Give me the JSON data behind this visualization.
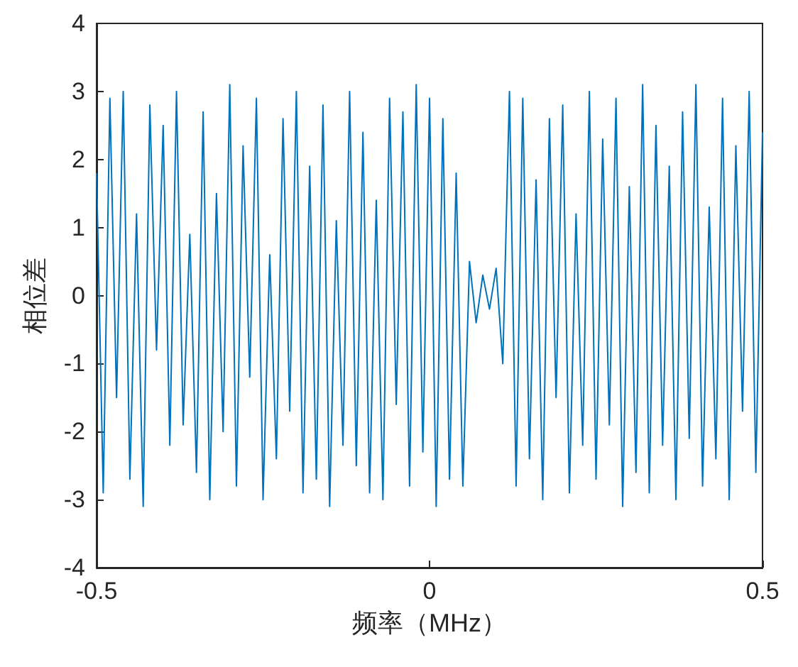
{
  "chart_data": {
    "type": "line",
    "xlabel": "频率（MHz）",
    "ylabel": "相位差",
    "x": [
      -0.5,
      -0.49,
      -0.48,
      -0.47,
      -0.46,
      -0.45,
      -0.44,
      -0.43,
      -0.42,
      -0.41,
      -0.4,
      -0.39,
      -0.38,
      -0.37,
      -0.36,
      -0.35,
      -0.34,
      -0.33,
      -0.32,
      -0.31,
      -0.3,
      -0.29,
      -0.28,
      -0.27,
      -0.26,
      -0.25,
      -0.24,
      -0.23,
      -0.22,
      -0.21,
      -0.2,
      -0.19,
      -0.18,
      -0.17,
      -0.16,
      -0.15,
      -0.14,
      -0.13,
      -0.12,
      -0.11,
      -0.1,
      -0.09,
      -0.08,
      -0.07,
      -0.06,
      -0.05,
      -0.04,
      -0.03,
      -0.02,
      -0.01,
      0,
      0.01,
      0.02,
      0.03,
      0.04,
      0.05,
      0.06,
      0.07,
      0.08,
      0.09,
      0.1,
      0.11,
      0.12,
      0.13,
      0.14,
      0.15,
      0.16,
      0.17,
      0.18,
      0.19,
      0.2,
      0.21,
      0.22,
      0.23,
      0.24,
      0.25,
      0.26,
      0.27,
      0.28,
      0.29,
      0.3,
      0.31,
      0.32,
      0.33,
      0.34,
      0.35,
      0.36,
      0.37,
      0.38,
      0.39,
      0.4,
      0.41,
      0.42,
      0.43,
      0.44,
      0.45,
      0.46,
      0.47,
      0.48,
      0.49,
      0.5
    ],
    "series": [
      {
        "color": "#0072bd",
        "values": [
          1.8,
          -2.9,
          2.9,
          -1.5,
          3.0,
          -2.7,
          1.2,
          -3.1,
          2.8,
          -0.8,
          2.5,
          -2.2,
          3.0,
          -1.9,
          0.9,
          -2.6,
          2.7,
          -3.0,
          1.5,
          -2.0,
          3.1,
          -2.8,
          2.2,
          -1.2,
          2.9,
          -3.0,
          0.6,
          -2.4,
          2.6,
          -1.7,
          3.0,
          -2.9,
          1.9,
          -2.7,
          2.8,
          -3.1,
          1.1,
          -2.2,
          3.0,
          -2.5,
          2.4,
          -2.9,
          1.4,
          -3.0,
          2.9,
          -1.6,
          2.7,
          -2.8,
          3.1,
          -2.3,
          2.9,
          -3.1,
          2.6,
          -2.7,
          1.8,
          -2.8,
          0.5,
          -0.4,
          0.3,
          -0.2,
          0.4,
          -1.0,
          3.0,
          -2.8,
          2.9,
          -2.4,
          1.7,
          -3.0,
          2.6,
          -1.5,
          2.8,
          -2.9,
          1.2,
          -2.2,
          3.0,
          -2.7,
          2.3,
          -1.9,
          2.9,
          -3.1,
          1.6,
          -2.6,
          3.1,
          -2.9,
          2.5,
          -2.2,
          1.9,
          -3.0,
          2.7,
          -2.1,
          3.1,
          -2.8,
          1.3,
          -2.4,
          2.9,
          -3.0,
          2.2,
          -1.7,
          3.0,
          -2.6,
          2.4
        ]
      }
    ],
    "xlim": [
      -0.5,
      0.5
    ],
    "xticks": [
      -0.5,
      0,
      0.5
    ],
    "ylim": [
      -4,
      4
    ],
    "yticks": [
      -4,
      -3,
      -2,
      -1,
      0,
      1,
      2,
      3,
      4
    ],
    "grid": false,
    "marker": "none",
    "line_style": "solid"
  }
}
